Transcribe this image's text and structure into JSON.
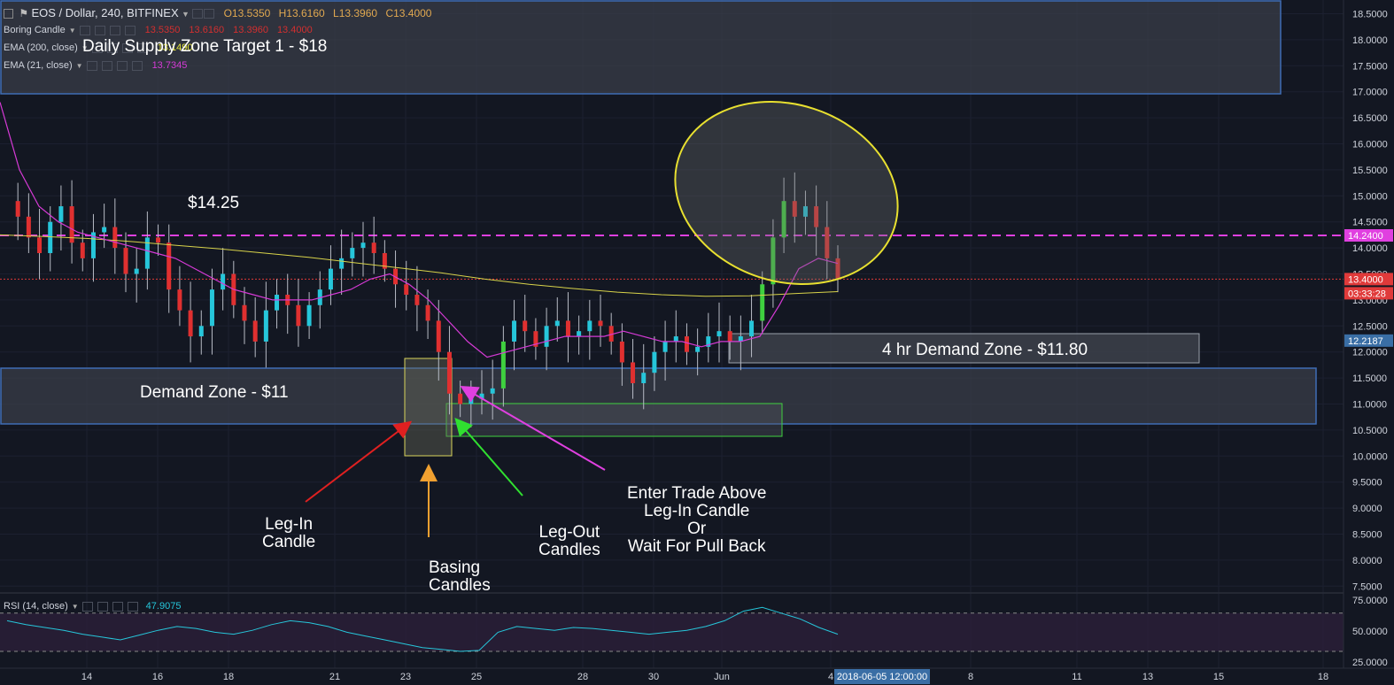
{
  "header": {
    "symbol": "EOS / Dollar, 240, BITFINEX",
    "ohlc": {
      "o": "O13.5350",
      "h": "H13.6160",
      "l": "L13.3960",
      "c": "C13.4000"
    }
  },
  "legend": [
    {
      "name": "Boring Candle",
      "values": [
        "13.5350",
        "13.6160",
        "13.3960",
        "13.4000"
      ],
      "color": "#d32f2f"
    },
    {
      "name": "EMA (200, close)",
      "values": [
        "13.1490"
      ],
      "color": "#e8e83a"
    },
    {
      "name": "EMA (21, close)",
      "values": [
        "13.7345"
      ],
      "color": "#d63ad6"
    }
  ],
  "rsi_label": {
    "name": "RSI (14, close)",
    "value": "47.9075"
  },
  "annotations": {
    "supply_zone": "Daily Supply Zone Target 1 - $18",
    "level_1425": "$14.25",
    "demand_zone": "Demand  Zone - $11",
    "demand_4hr": "4 hr Demand Zone - $11.80",
    "leg_in": [
      "Leg-In",
      "Candle"
    ],
    "basing": [
      "Basing",
      "Candles"
    ],
    "leg_out": [
      "Leg-Out",
      "Candles"
    ],
    "enter": [
      "Enter Trade Above",
      "Leg-In Candle",
      "Or",
      "Wait For Pull Back"
    ]
  },
  "price_badges": [
    {
      "text": "14.2400",
      "color": "#e040e0"
    },
    {
      "text": "13.4000",
      "color": "#e03a3a"
    },
    {
      "text": "03:33:28",
      "color": "#e03a3a"
    },
    {
      "text": "12.2187",
      "color": "#3a6ea5"
    }
  ],
  "date_badge": "2018-06-05 12:00:00",
  "chart_data": {
    "type": "candlestick",
    "price_ticks": [
      "18.5000",
      "18.0000",
      "17.5000",
      "17.0000",
      "16.5000",
      "16.0000",
      "15.5000",
      "15.0000",
      "14.5000",
      "14.0000",
      "13.5000",
      "13.0000",
      "12.5000",
      "12.0000",
      "11.5000",
      "11.0000",
      "10.5000",
      "10.0000",
      "9.5000",
      "9.0000",
      "8.5000",
      "8.0000",
      "7.5000"
    ],
    "rsi_ticks": [
      "75.0000",
      "50.0000",
      "25.0000"
    ],
    "x_ticks": [
      "14",
      "16",
      "18",
      "21",
      "23",
      "25",
      "28",
      "30",
      "Jun",
      "4",
      "8",
      "11",
      "13",
      "15",
      "18"
    ],
    "ylim": [
      7.3,
      18.7
    ],
    "levels": {
      "resistance": 14.24,
      "last_price": 13.4
    },
    "ohlc_path": [
      14.9,
      14.6,
      14.2,
      13.9,
      14.5,
      14.8,
      14.1,
      13.8,
      14.3,
      14.4,
      14.0,
      13.5,
      13.6,
      14.2,
      14.1,
      13.2,
      12.8,
      12.3,
      12.5,
      13.2,
      13.5,
      12.9,
      12.6,
      12.2,
      12.8,
      13.1,
      12.9,
      12.5,
      12.9,
      13.2,
      13.6,
      13.8,
      14.0,
      14.1,
      13.9,
      13.6,
      13.3,
      13.1,
      12.9,
      12.6,
      12.0,
      11.2,
      11.0,
      11.1,
      11.2,
      11.3,
      12.2,
      12.6,
      12.4,
      12.1,
      12.5,
      12.6,
      12.3,
      12.4,
      12.6,
      12.5,
      12.2,
      11.8,
      11.4,
      11.6,
      12.0,
      12.2,
      12.3,
      12.0,
      12.1,
      12.3,
      12.4,
      12.2,
      12.3,
      12.6,
      13.3,
      14.2,
      14.9,
      14.6,
      14.8,
      14.4,
      13.8,
      13.4
    ],
    "ema21": [
      16.8,
      15.5,
      14.8,
      14.5,
      14.3,
      14.2,
      14.1,
      14.0,
      13.9,
      13.8,
      13.6,
      13.4,
      13.2,
      13.1,
      13.0,
      13.0,
      13.0,
      13.1,
      13.2,
      13.4,
      13.5,
      13.3,
      13.0,
      12.6,
      12.2,
      11.9,
      12.0,
      12.1,
      12.2,
      12.3,
      12.3,
      12.3,
      12.4,
      12.3,
      12.2,
      12.2,
      12.1,
      12.2,
      12.2,
      12.3,
      12.9,
      13.6,
      13.8,
      13.7
    ],
    "ema200": [
      14.25,
      14.22,
      14.18,
      14.12,
      14.05,
      13.98,
      13.9,
      13.82,
      13.72,
      13.62,
      13.52,
      13.4,
      13.3,
      13.22,
      13.15,
      13.1,
      13.07,
      13.08,
      13.12,
      13.16
    ],
    "rsi": [
      62,
      58,
      55,
      52,
      48,
      45,
      42,
      47,
      52,
      56,
      54,
      50,
      48,
      52,
      58,
      62,
      60,
      56,
      50,
      46,
      42,
      38,
      34,
      32,
      30,
      31,
      50,
      56,
      54,
      52,
      55,
      54,
      52,
      50,
      48,
      50,
      52,
      56,
      62,
      72,
      76,
      70,
      64,
      55,
      48
    ]
  }
}
